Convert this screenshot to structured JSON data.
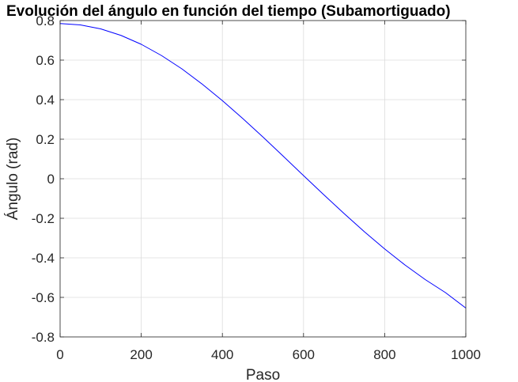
{
  "chart_data": {
    "type": "line",
    "title": "Evolución del ángulo en función del tiempo (Subamortiguado)",
    "xlabel": "Paso",
    "ylabel": "Ángulo (rad)",
    "xlim": [
      0,
      1000
    ],
    "ylim": [
      -0.8,
      0.8
    ],
    "xticks": [
      0,
      200,
      400,
      600,
      800,
      1000
    ],
    "xtick_labels": [
      "0",
      "200",
      "400",
      "600",
      "800",
      "1000"
    ],
    "yticks": [
      0.8,
      0.6,
      0.4,
      0.2,
      0,
      -0.2,
      -0.4,
      -0.6,
      -0.8
    ],
    "ytick_labels": [
      "0.8",
      "0.6",
      "0.4",
      "0.2",
      "0",
      "-0.2",
      "-0.4",
      "-0.6",
      "-0.8"
    ],
    "grid": true,
    "series": [
      {
        "color": "#0000ff",
        "x": [
          0,
          50,
          100,
          150,
          200,
          250,
          300,
          350,
          400,
          450,
          500,
          550,
          600,
          650,
          700,
          750,
          800,
          850,
          900,
          950,
          1000
        ],
        "values": [
          0.785,
          0.778,
          0.758,
          0.725,
          0.68,
          0.623,
          0.556,
          0.479,
          0.395,
          0.305,
          0.211,
          0.114,
          0.016,
          -0.081,
          -0.176,
          -0.268,
          -0.355,
          -0.436,
          -0.51,
          -0.576,
          -0.654
        ]
      }
    ]
  }
}
